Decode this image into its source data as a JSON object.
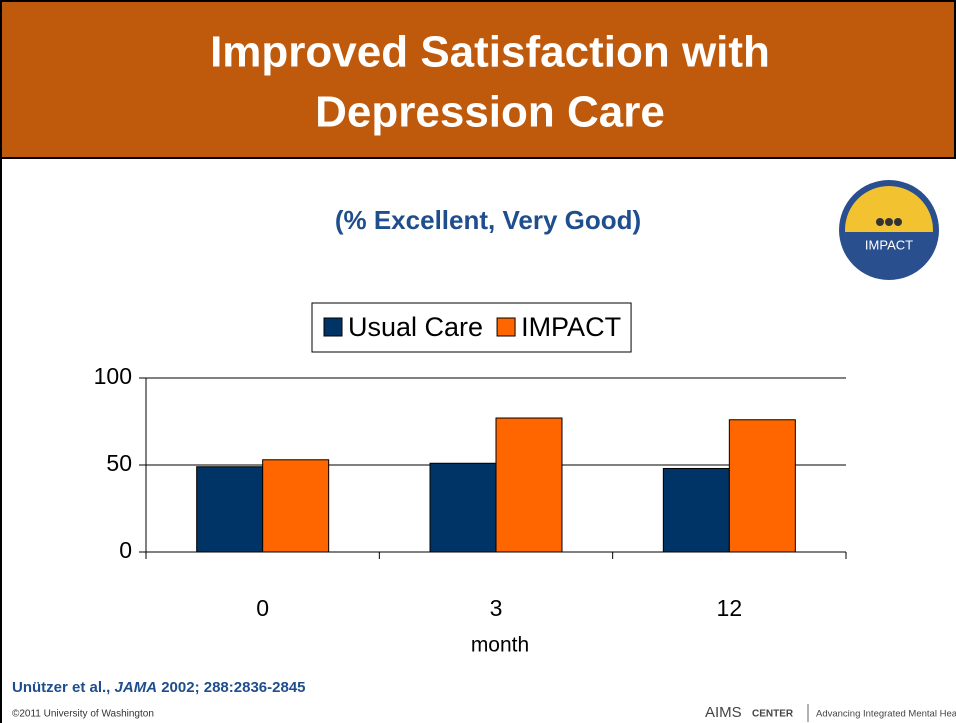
{
  "slide": {
    "title_lines": [
      "Improved Satisfaction with",
      "Depression Care"
    ],
    "logo_text": "IMPACT",
    "citation": {
      "authors": "Unützer et al.,",
      "journal": "JAMA",
      "rest": "2002; 288:2836-2845"
    },
    "copyright": "©2011 University of Washington",
    "footer": {
      "brand": "AIMS",
      "brand_sub": "CENTER",
      "tagline": "Advancing Integrated Mental Health Solutions"
    }
  },
  "chart_data": {
    "type": "bar",
    "subtitle": "(% Excellent, Very Good)",
    "x_label": "month",
    "categories": [
      "0",
      "3",
      "12"
    ],
    "series": [
      {
        "name": "Usual Care",
        "color": "#003366",
        "values": [
          49,
          51,
          48
        ]
      },
      {
        "name": "IMPACT",
        "color": "#ff6600",
        "values": [
          53,
          77,
          76
        ]
      }
    ],
    "ylim": [
      0,
      100
    ],
    "yticks": [
      0,
      50,
      100
    ],
    "grid": true
  }
}
